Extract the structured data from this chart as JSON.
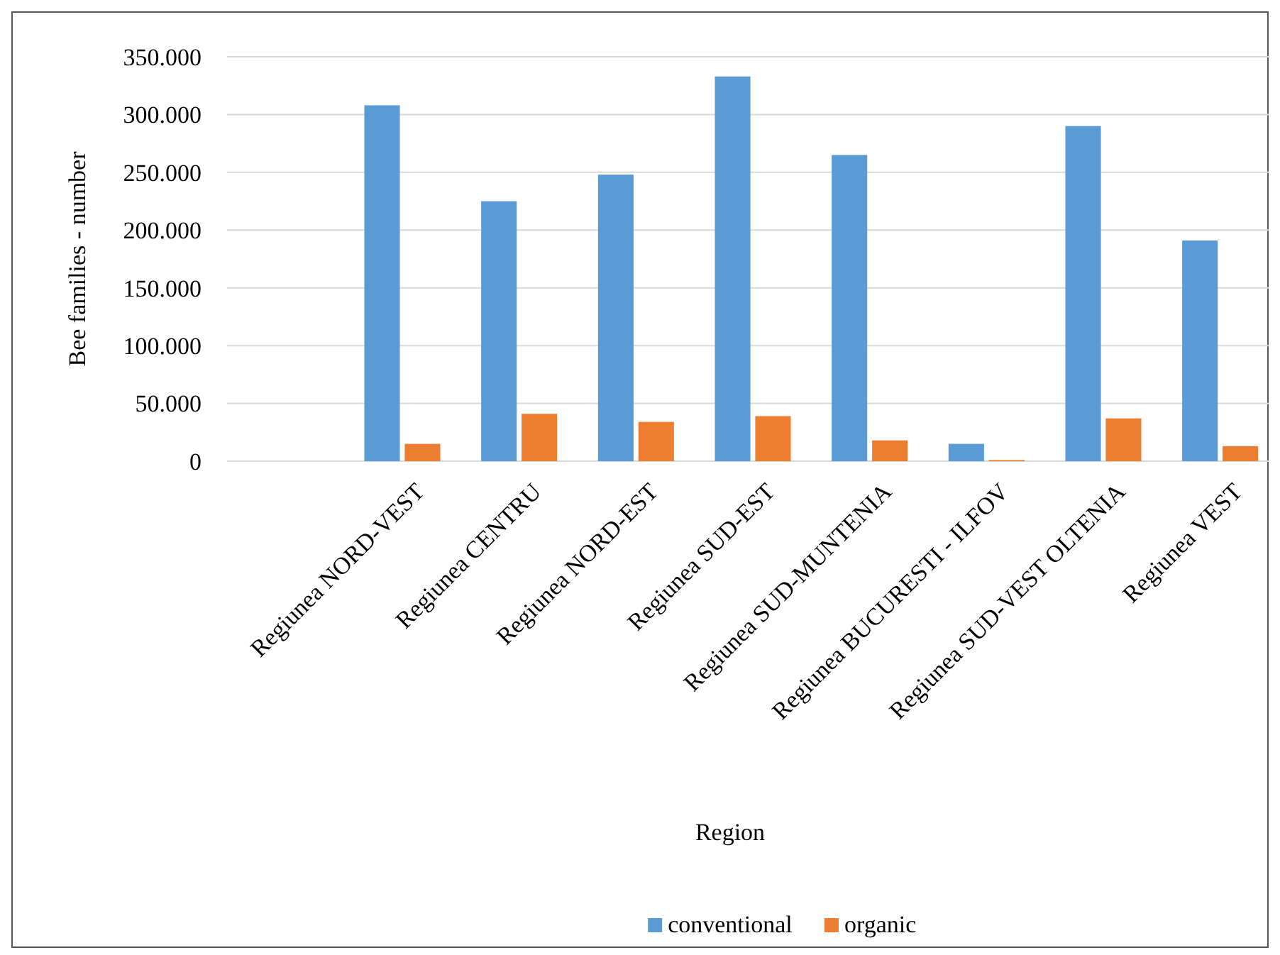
{
  "chart_data": {
    "type": "bar",
    "xlabel": "Region",
    "ylabel": "Bee families - number",
    "categories": [
      null,
      "Regiunea NORD-VEST",
      "Regiunea CENTRU",
      "Regiunea NORD-EST",
      "Regiunea SUD-EST",
      "Regiunea SUD-MUNTENIA",
      "Regiunea BUCURESTI - ILFOV",
      "Regiunea SUD-VEST OLTENIA",
      "Regiunea VEST"
    ],
    "series": [
      {
        "name": "conventional",
        "color": "#5b9bd5",
        "values": [
          null,
          308000,
          225000,
          248000,
          333000,
          265000,
          15000,
          290000,
          191000
        ]
      },
      {
        "name": "organic",
        "color": "#ed7d31",
        "values": [
          null,
          15000,
          41000,
          34000,
          39000,
          18000,
          1000,
          37000,
          13000
        ]
      }
    ],
    "ylim": [
      0,
      350000
    ],
    "yticks": [
      {
        "value": 0,
        "label": "0"
      },
      {
        "value": 50000,
        "label": "50.000"
      },
      {
        "value": 100000,
        "label": "100.000"
      },
      {
        "value": 150000,
        "label": "150.000"
      },
      {
        "value": 200000,
        "label": "200.000"
      },
      {
        "value": 250000,
        "label": "250.000"
      },
      {
        "value": 300000,
        "label": "300.000"
      },
      {
        "value": 350000,
        "label": "350.000"
      }
    ],
    "grid": "y",
    "legend": "bottom"
  }
}
